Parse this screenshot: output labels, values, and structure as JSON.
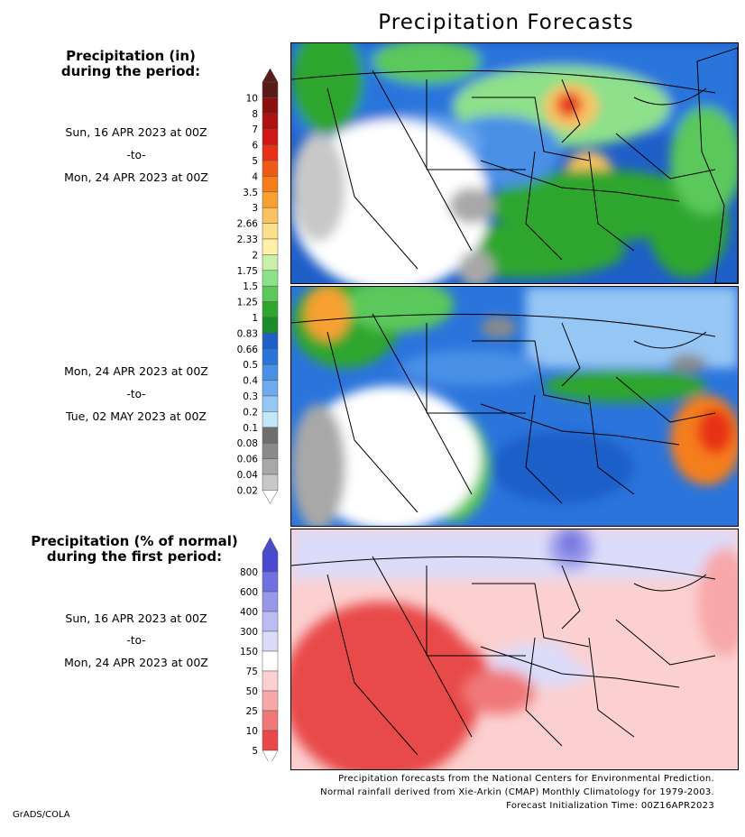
{
  "title": "Precipitation Forecasts",
  "legend1": {
    "header_line1": "Precipitation (in)",
    "header_line2": "during the period:",
    "labels": [
      "10",
      "8",
      "7",
      "6",
      "5",
      "4",
      "3.5",
      "3",
      "2.66",
      "2.33",
      "2",
      "1.75",
      "1.5",
      "1.25",
      "1",
      "0.83",
      "0.66",
      "0.5",
      "0.4",
      "0.3",
      "0.2",
      "0.1",
      "0.08",
      "0.06",
      "0.04",
      "0.02"
    ],
    "colors": [
      "#5a1a1a",
      "#8b0f0f",
      "#b01010",
      "#d01818",
      "#e83018",
      "#f05a14",
      "#f57e1a",
      "#f8a030",
      "#fbc260",
      "#fde08a",
      "#fff0a8",
      "#c8f0a8",
      "#8ee08a",
      "#5ac85a",
      "#2ea62e",
      "#1a8c2a",
      "#1f5fc8",
      "#2a74dc",
      "#4a90e6",
      "#6eaaee",
      "#96c6f4",
      "#c2e6fa",
      "#6e6e6e",
      "#8a8a8a",
      "#a8a8a8",
      "#c8c8c8"
    ]
  },
  "legend2": {
    "header_line1": "Precipitation (% of normal)",
    "header_line2": "during the first period:",
    "labels": [
      "800",
      "600",
      "400",
      "300",
      "150",
      "75",
      "50",
      "25",
      "10",
      "5"
    ],
    "colors": [
      "#4a4ad0",
      "#7070e0",
      "#9898ea",
      "#bcbcf2",
      "#dcdcfa",
      "#ffffff",
      "#fcd0d0",
      "#f8a8a8",
      "#f07878",
      "#e84848"
    ]
  },
  "period1": {
    "start": "Sun, 16 APR 2023 at 00Z",
    "sep": "-to-",
    "end": "Mon, 24 APR 2023 at 00Z"
  },
  "period2": {
    "start": "Mon, 24 APR 2023 at 00Z",
    "sep": "-to-",
    "end": "Tue, 02 MAY 2023 at 00Z"
  },
  "period3": {
    "start": "Sun, 16 APR 2023 at 00Z",
    "sep": "-to-",
    "end": "Mon, 24 APR 2023 at 00Z"
  },
  "footer": {
    "line1": "Precipitation forecasts from the National Centers for Environmental Prediction.",
    "line2": "Normal rainfall derived from Xie-Arkin (CMAP) Monthly Climatology for 1979-2003.",
    "line3": "Forecast Initialization Time: 00Z16APR2023"
  },
  "credit": "GrADS/COLA"
}
